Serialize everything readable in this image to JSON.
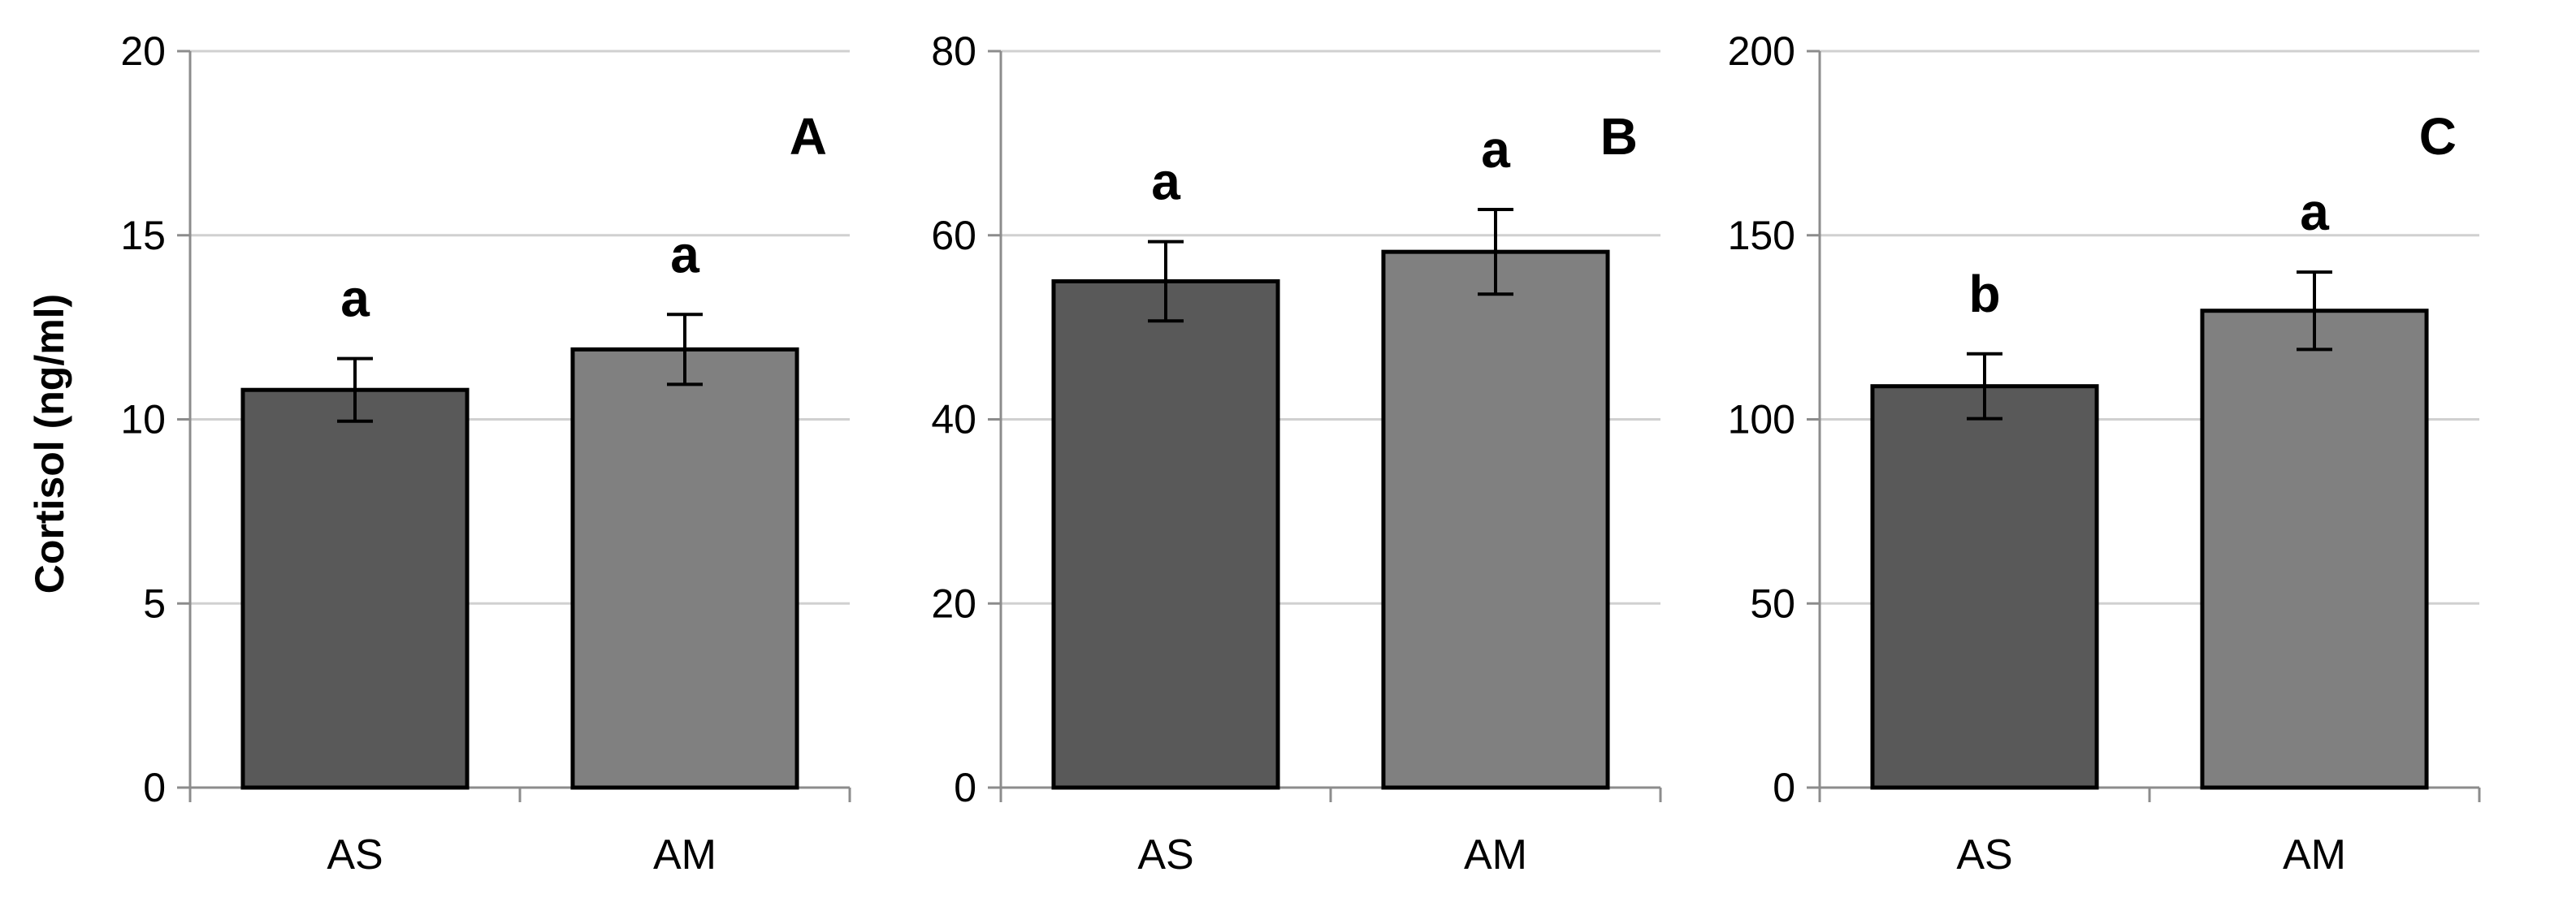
{
  "chart_data": [
    {
      "type": "bar",
      "panel_label": "A",
      "categories": [
        "AS",
        "AM"
      ],
      "values": [
        10.8,
        11.9
      ],
      "errors": [
        0.85,
        0.95
      ],
      "significance": [
        "a",
        "a"
      ],
      "colors": [
        "#595959",
        "#808080"
      ],
      "ylabel": "Cortisol (ng/ml)",
      "ylim": [
        0,
        20
      ],
      "yticks": [
        0,
        5,
        10,
        15,
        20
      ],
      "grid": true
    },
    {
      "type": "bar",
      "panel_label": "B",
      "categories": [
        "AS",
        "AM"
      ],
      "values": [
        55,
        58.2
      ],
      "errors": [
        4.3,
        4.6
      ],
      "significance": [
        "a",
        "a"
      ],
      "colors": [
        "#595959",
        "#808080"
      ],
      "ylabel": "",
      "ylim": [
        0,
        80
      ],
      "yticks": [
        0,
        20,
        40,
        60,
        80
      ],
      "grid": true
    },
    {
      "type": "bar",
      "panel_label": "C",
      "categories": [
        "AS",
        "AM"
      ],
      "values": [
        109,
        129.5
      ],
      "errors": [
        8.8,
        10.5
      ],
      "significance": [
        "b",
        "a"
      ],
      "colors": [
        "#595959",
        "#808080"
      ],
      "ylabel": "",
      "ylim": [
        0,
        200
      ],
      "yticks": [
        0,
        50,
        100,
        150,
        200
      ],
      "grid": true
    }
  ]
}
